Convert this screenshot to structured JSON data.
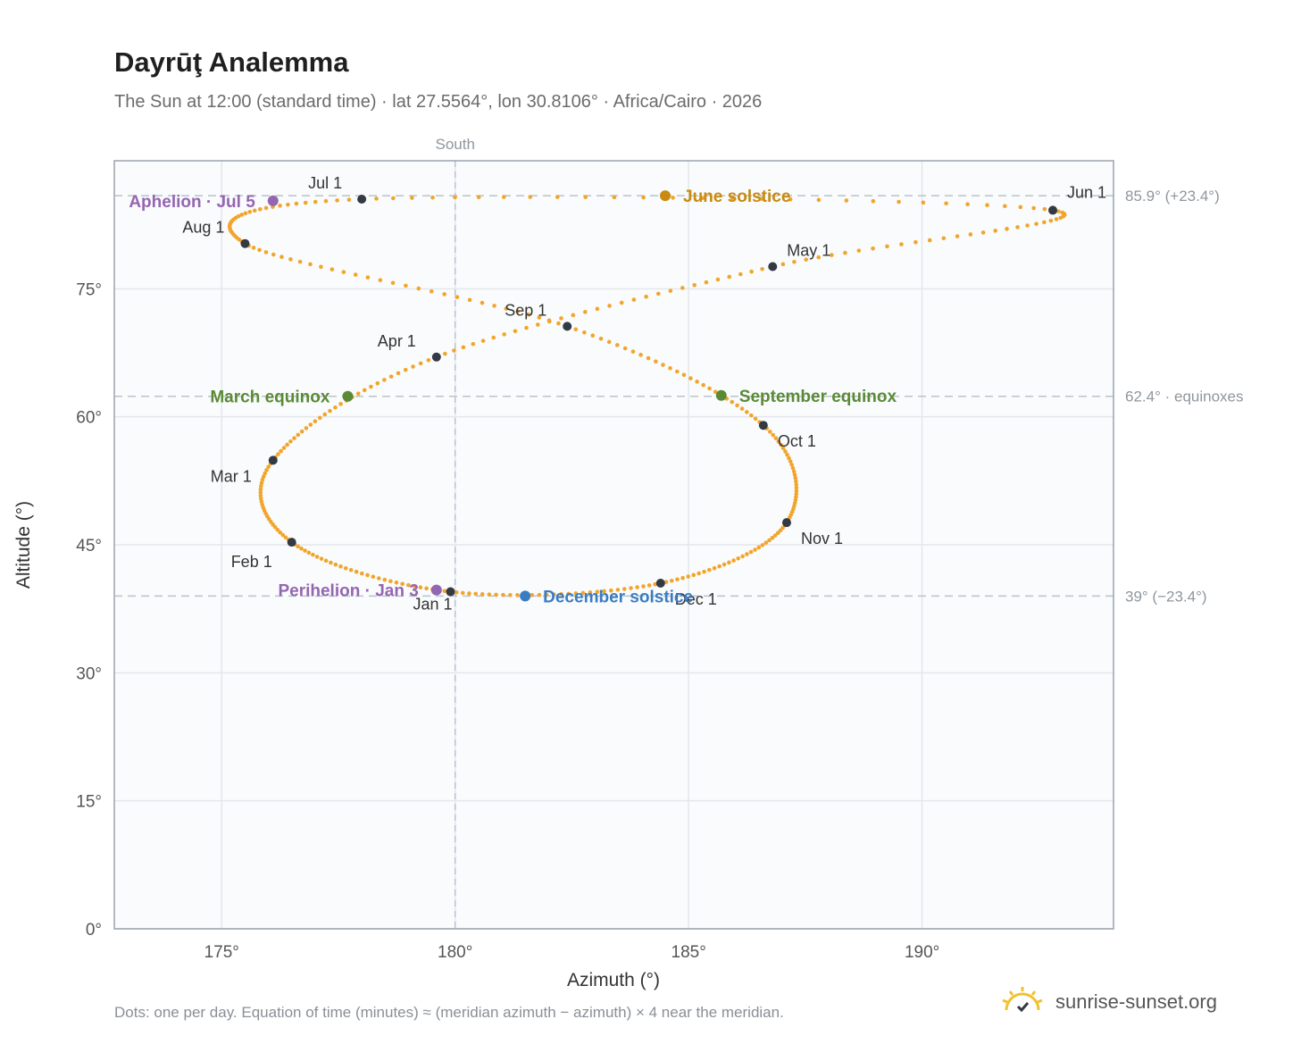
{
  "title": "Dayrūţ Analemma",
  "subtitle": "The Sun at 12:00 (standard time) · lat 27.5564°, lon 30.8106° · Africa/Cairo · 2026",
  "footnote": "Dots: one per day. Equation of time (minutes) ≈ (meridian azimuth − azimuth) × 4 near the meridian.",
  "brand": {
    "name": "sunrise-sunset.org",
    "icon": "sun-logo-icon"
  },
  "colors": {
    "curve": "#f2a52b",
    "month_marker": "#333a44",
    "june_solstice": "#c98a0f",
    "december_solstice": "#3a7cc2",
    "equinox": "#5a8a35",
    "apsis": "#9466b0",
    "reference_line": "#b8c4cc",
    "plot_background": "#f9fbfd",
    "grid": "#e3e8ec"
  },
  "chart_data": {
    "type": "scatter",
    "title": "Dayrūţ Analemma",
    "xlabel": "Azimuth (°)",
    "ylabel": "Altitude (°)",
    "xlim": [
      172.7,
      194.1
    ],
    "ylim": [
      0,
      90
    ],
    "x_ticks": [
      175,
      180,
      185,
      190
    ],
    "x_tick_labels": [
      "175°",
      "180°",
      "185°",
      "190°"
    ],
    "y_ticks": [
      0,
      15,
      30,
      45,
      60,
      75
    ],
    "y_tick_labels": [
      "0°",
      "15°",
      "30°",
      "45°",
      "60°",
      "75°"
    ],
    "grid": true,
    "meridian": {
      "azimuth": 180,
      "label": "South"
    },
    "reference_lines": [
      {
        "altitude": 85.9,
        "label": "85.9° (+23.4°)"
      },
      {
        "altitude": 62.4,
        "label": "62.4° · equinoxes"
      },
      {
        "altitude": 39.0,
        "label": "39° (−23.4°)"
      }
    ],
    "month_markers": [
      {
        "label": "Jan 1",
        "azimuth": 179.9,
        "altitude": 39.5
      },
      {
        "label": "Feb 1",
        "azimuth": 176.5,
        "altitude": 45.3
      },
      {
        "label": "Mar 1",
        "azimuth": 176.1,
        "altitude": 54.9
      },
      {
        "label": "Apr 1",
        "azimuth": 179.6,
        "altitude": 67.0
      },
      {
        "label": "May 1",
        "azimuth": 186.8,
        "altitude": 77.6
      },
      {
        "label": "Jun 1",
        "azimuth": 192.8,
        "altitude": 84.2
      },
      {
        "label": "Jul 1",
        "azimuth": 178.0,
        "altitude": 85.5
      },
      {
        "label": "Aug 1",
        "azimuth": 175.5,
        "altitude": 80.3
      },
      {
        "label": "Sep 1",
        "azimuth": 182.4,
        "altitude": 70.6
      },
      {
        "label": "Oct 1",
        "azimuth": 186.6,
        "altitude": 59.0
      },
      {
        "label": "Nov 1",
        "azimuth": 187.1,
        "altitude": 47.6
      },
      {
        "label": "Dec 1",
        "azimuth": 184.4,
        "altitude": 40.5
      }
    ],
    "events": [
      {
        "label": "June solstice",
        "azimuth": 184.5,
        "altitude": 85.9,
        "kind": "june_solstice"
      },
      {
        "label": "December solstice",
        "azimuth": 181.5,
        "altitude": 39.0,
        "kind": "december_solstice"
      },
      {
        "label": "March equinox",
        "azimuth": 177.7,
        "altitude": 62.4,
        "kind": "equinox"
      },
      {
        "label": "September equinox",
        "azimuth": 185.7,
        "altitude": 62.5,
        "kind": "equinox"
      },
      {
        "label": "Perihelion · Jan 3",
        "azimuth": 179.6,
        "altitude": 39.7,
        "kind": "apsis"
      },
      {
        "label": "Aphelion · Jul 5",
        "azimuth": 176.1,
        "altitude": 85.3,
        "kind": "apsis"
      }
    ]
  }
}
